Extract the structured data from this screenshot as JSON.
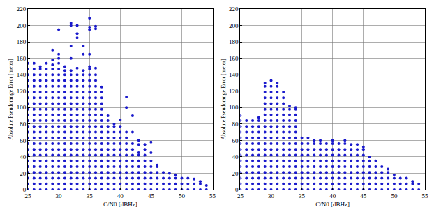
{
  "chart_data": [
    {
      "type": "scatter",
      "xlabel": "C/N0 [dBHz]",
      "ylabel": "Absolute Pseudorange Error [meter]",
      "color": "#1a1acc",
      "marker": "circle",
      "grid": true,
      "xlim": [
        25,
        55
      ],
      "ylim": [
        0,
        220
      ],
      "xticks": [
        25,
        30,
        35,
        40,
        45,
        50,
        55
      ],
      "yticks": [
        0,
        20,
        40,
        60,
        80,
        100,
        120,
        140,
        160,
        180,
        200,
        220
      ],
      "x": [
        25,
        26,
        27,
        28,
        29,
        30,
        31,
        32,
        33,
        34,
        35,
        36,
        37,
        38,
        39,
        40,
        41,
        42,
        43,
        44,
        45,
        46,
        47,
        48,
        49,
        50,
        51,
        52,
        53,
        54
      ],
      "values": [
        [
          0,
          7,
          14,
          21,
          28,
          35,
          42,
          49,
          56,
          63,
          70,
          77,
          84,
          91,
          98,
          105,
          112,
          119,
          126,
          133,
          140,
          147,
          154
        ],
        [
          0,
          7,
          14,
          21,
          28,
          35,
          42,
          49,
          56,
          63,
          70,
          77,
          84,
          91,
          98,
          105,
          112,
          119,
          126,
          133,
          140,
          147,
          154
        ],
        [
          0,
          7,
          14,
          21,
          28,
          35,
          42,
          49,
          56,
          63,
          70,
          77,
          84,
          91,
          98,
          105,
          112,
          119,
          126,
          133,
          140,
          147,
          150
        ],
        [
          0,
          7,
          14,
          21,
          28,
          35,
          42,
          49,
          56,
          63,
          70,
          77,
          84,
          91,
          98,
          105,
          112,
          119,
          126,
          133,
          140,
          147,
          154
        ],
        [
          0,
          7,
          14,
          21,
          28,
          35,
          42,
          49,
          56,
          63,
          70,
          77,
          84,
          91,
          98,
          105,
          112,
          119,
          126,
          133,
          140,
          147,
          152,
          158,
          170
        ],
        [
          0,
          7,
          14,
          21,
          28,
          35,
          42,
          49,
          56,
          63,
          70,
          77,
          84,
          91,
          98,
          105,
          112,
          119,
          126,
          133,
          140,
          147,
          154,
          160,
          165,
          195
        ],
        [
          0,
          7,
          14,
          21,
          28,
          35,
          42,
          49,
          56,
          63,
          70,
          77,
          84,
          91,
          98,
          105,
          112,
          119,
          126,
          133,
          140,
          145,
          150
        ],
        [
          0,
          7,
          14,
          21,
          28,
          35,
          42,
          49,
          56,
          63,
          70,
          77,
          84,
          91,
          98,
          105,
          112,
          119,
          126,
          133,
          140,
          145,
          160,
          175,
          200,
          203
        ],
        [
          0,
          7,
          14,
          21,
          28,
          35,
          42,
          49,
          56,
          63,
          70,
          77,
          84,
          91,
          98,
          105,
          112,
          119,
          126,
          133,
          140,
          148,
          185,
          190,
          200
        ],
        [
          0,
          7,
          14,
          21,
          28,
          35,
          42,
          49,
          56,
          63,
          70,
          77,
          84,
          91,
          98,
          105,
          112,
          119,
          126,
          133,
          140,
          145,
          165,
          175
        ],
        [
          0,
          7,
          14,
          21,
          28,
          35,
          42,
          49,
          56,
          63,
          70,
          77,
          84,
          91,
          98,
          105,
          112,
          119,
          126,
          133,
          140,
          147,
          150,
          165,
          195,
          198,
          209
        ],
        [
          0,
          7,
          14,
          21,
          28,
          35,
          42,
          49,
          56,
          63,
          70,
          77,
          84,
          91,
          98,
          105,
          112,
          119,
          126,
          133,
          140,
          148,
          196,
          199
        ],
        [
          0,
          7,
          14,
          21,
          28,
          35,
          42,
          49,
          56,
          63,
          70,
          77,
          84,
          91,
          98,
          105,
          112,
          119,
          125
        ],
        [
          0,
          7,
          14,
          21,
          28,
          35,
          42,
          49,
          56,
          63,
          70,
          77,
          84,
          90
        ],
        [
          0,
          7,
          14,
          21,
          28,
          35,
          42,
          49,
          56,
          63,
          70,
          77,
          80
        ],
        [
          0,
          7,
          14,
          21,
          28,
          35,
          42,
          49,
          56,
          63,
          70,
          77,
          85
        ],
        [
          0,
          7,
          14,
          21,
          28,
          35,
          42,
          49,
          56,
          63,
          70,
          100,
          113
        ],
        [
          0,
          7,
          14,
          21,
          28,
          35,
          42,
          49,
          56,
          70,
          90
        ],
        [
          0,
          7,
          14,
          21,
          28,
          35,
          42,
          45,
          55,
          60
        ],
        [
          0,
          7,
          14,
          21,
          28,
          35,
          42,
          49,
          55
        ],
        [
          0,
          7,
          14,
          21,
          28,
          35,
          45,
          58
        ],
        [
          0,
          7,
          14,
          21,
          28,
          30
        ],
        [
          0,
          7,
          14,
          21
        ],
        [
          0,
          7,
          14,
          20
        ],
        [
          0,
          7,
          14,
          18
        ],
        [
          0,
          7,
          14
        ],
        [
          0,
          7,
          14
        ],
        [
          0,
          7,
          13
        ],
        [
          0,
          7,
          10
        ],
        [
          0,
          5
        ]
      ]
    },
    {
      "type": "scatter",
      "xlabel": "C/N0 [dBHz]",
      "ylabel": "Absolute Pseudorange Error [meter]",
      "color": "#1a1acc",
      "marker": "circle",
      "grid": true,
      "xlim": [
        25,
        55
      ],
      "ylim": [
        0,
        220
      ],
      "xticks": [
        25,
        30,
        35,
        40,
        45,
        50,
        55
      ],
      "yticks": [
        0,
        20,
        40,
        60,
        80,
        100,
        120,
        140,
        160,
        180,
        200,
        220
      ],
      "x": [
        25,
        26,
        27,
        28,
        29,
        30,
        31,
        32,
        33,
        34,
        35,
        36,
        37,
        38,
        39,
        40,
        41,
        42,
        43,
        44,
        45,
        46,
        47,
        48,
        49,
        50,
        51,
        52,
        53,
        54
      ],
      "values": [
        [
          0,
          7,
          14,
          21,
          28,
          35,
          42,
          49,
          56,
          63,
          70,
          77,
          84,
          90
        ],
        [
          0,
          7,
          14,
          21,
          28,
          35,
          42,
          49,
          56,
          63,
          70,
          77,
          84
        ],
        [
          0,
          7,
          14,
          21,
          28,
          35,
          42,
          49,
          56,
          63,
          70,
          77,
          84
        ],
        [
          0,
          7,
          14,
          21,
          28,
          35,
          42,
          49,
          56,
          63,
          70,
          77,
          84,
          88
        ],
        [
          0,
          7,
          14,
          21,
          28,
          35,
          42,
          49,
          56,
          63,
          70,
          77,
          84,
          91,
          98,
          105,
          112,
          119,
          126,
          130
        ],
        [
          0,
          7,
          14,
          21,
          28,
          35,
          42,
          49,
          56,
          63,
          70,
          77,
          84,
          91,
          98,
          105,
          112,
          119,
          126,
          133
        ],
        [
          0,
          7,
          14,
          21,
          28,
          35,
          42,
          49,
          56,
          63,
          70,
          77,
          84,
          91,
          98,
          105,
          112,
          119,
          126,
          130
        ],
        [
          0,
          7,
          14,
          21,
          28,
          35,
          42,
          49,
          56,
          63,
          70,
          77,
          84,
          91,
          98,
          105,
          112,
          119
        ],
        [
          0,
          7,
          14,
          21,
          28,
          35,
          42,
          49,
          56,
          63,
          70,
          77,
          84,
          91,
          98,
          102
        ],
        [
          0,
          7,
          14,
          21,
          28,
          35,
          42,
          49,
          56,
          63,
          70,
          77,
          84,
          91,
          98,
          100
        ],
        [
          0,
          7,
          14,
          21,
          28,
          35,
          42,
          49,
          56,
          63
        ],
        [
          0,
          7,
          14,
          21,
          28,
          35,
          42,
          49,
          56,
          63
        ],
        [
          0,
          7,
          14,
          21,
          28,
          35,
          42,
          49,
          56,
          60
        ],
        [
          0,
          7,
          14,
          21,
          28,
          35,
          42,
          49,
          56,
          60
        ],
        [
          0,
          7,
          14,
          21,
          28,
          35,
          42,
          49,
          56
        ],
        [
          0,
          7,
          14,
          21,
          28,
          35,
          42,
          49,
          56,
          60
        ],
        [
          0,
          7,
          14,
          21,
          28,
          35,
          42,
          49,
          56
        ],
        [
          0,
          7,
          14,
          21,
          28,
          35,
          42,
          49,
          56,
          60
        ],
        [
          0,
          7,
          14,
          21,
          28,
          35,
          42,
          49,
          55
        ],
        [
          0,
          7,
          14,
          21,
          28,
          35,
          42,
          49,
          55
        ],
        [
          0,
          7,
          14,
          21,
          28,
          35,
          42,
          49,
          52
        ],
        [
          0,
          7,
          14,
          21,
          28,
          35,
          40
        ],
        [
          0,
          7,
          14,
          21,
          28,
          35
        ],
        [
          0,
          7,
          14,
          21,
          28
        ],
        [
          0,
          7,
          14,
          21,
          25
        ],
        [
          0,
          7,
          14,
          18
        ],
        [
          0,
          7,
          14
        ],
        [
          0,
          7,
          14
        ],
        [
          0,
          7,
          10
        ],
        [
          0,
          7
        ]
      ]
    }
  ]
}
